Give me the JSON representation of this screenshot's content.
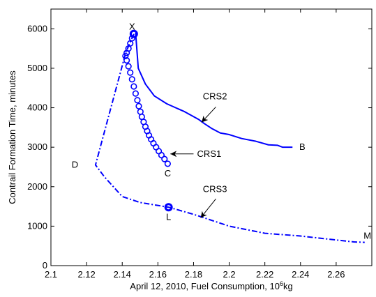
{
  "chart_data": {
    "type": "line",
    "xlabel": "April 12, 2010, Fuel Consumption, 10",
    "xlabel_sup": "6",
    "xlabel_unit": "kg",
    "ylabel": "Contrail Formation Time, minutes",
    "xlim": [
      2.1,
      2.28
    ],
    "ylim": [
      0,
      6500
    ],
    "xticks": [
      "2.1",
      "2.12",
      "2.14",
      "2.16",
      "2.18",
      "2.2",
      "2.22",
      "2.24",
      "2.26"
    ],
    "yticks": [
      "0",
      "1000",
      "2000",
      "3000",
      "4000",
      "5000",
      "6000"
    ],
    "grid": false,
    "line_color": "#0000ff",
    "series": [
      {
        "id": "crs1",
        "style": "circles",
        "x": [
          2.1465,
          2.1455,
          2.1445,
          2.1435,
          2.1425,
          2.1418,
          2.1425,
          2.1435,
          2.1445,
          2.1455,
          2.1465,
          2.1475,
          2.1485,
          2.1493,
          2.1502,
          2.151,
          2.152,
          2.153,
          2.154,
          2.155,
          2.1562,
          2.1575,
          2.159,
          2.1605,
          2.162,
          2.1637,
          2.1655
        ],
        "y": [
          5870,
          5760,
          5630,
          5500,
          5390,
          5310,
          5200,
          5050,
          4890,
          4720,
          4540,
          4360,
          4190,
          4040,
          3900,
          3770,
          3640,
          3520,
          3410,
          3300,
          3200,
          3100,
          3000,
          2900,
          2800,
          2700,
          2580
        ]
      },
      {
        "id": "crs2",
        "style": "solid",
        "x": [
          2.1475,
          2.149,
          2.153,
          2.158,
          2.165,
          2.175,
          2.183,
          2.186,
          2.19,
          2.195,
          2.2,
          2.207,
          2.215,
          2.222,
          2.227,
          2.23,
          2.2355
        ],
        "y": [
          5900,
          5000,
          4600,
          4300,
          4100,
          3900,
          3700,
          3600,
          3480,
          3360,
          3320,
          3220,
          3150,
          3060,
          3050,
          3000,
          3000
        ]
      },
      {
        "id": "crs3",
        "style": "dashdot",
        "x": [
          2.1465,
          2.142,
          2.125,
          2.13,
          2.14,
          2.15,
          2.166,
          2.18,
          2.2,
          2.22,
          2.24,
          2.26,
          2.27,
          2.276
        ],
        "y": [
          5870,
          5400,
          2550,
          2250,
          1750,
          1600,
          1480,
          1300,
          1000,
          820,
          750,
          650,
          600,
          590
        ]
      }
    ],
    "points": [
      {
        "id": "x-marker",
        "x": 2.1465,
        "y": 5870
      },
      {
        "id": "l-marker",
        "x": 2.166,
        "y": 1480
      }
    ],
    "point_labels": [
      {
        "id": "X",
        "text": "X",
        "x": 2.1455,
        "y": 6050
      },
      {
        "id": "D",
        "text": "D",
        "x": 2.1135,
        "y": 2550
      },
      {
        "id": "C",
        "text": "C",
        "x": 2.1655,
        "y": 2330
      },
      {
        "id": "B",
        "text": "B",
        "x": 2.241,
        "y": 3000
      },
      {
        "id": "L",
        "text": "L",
        "x": 2.166,
        "y": 1230
      },
      {
        "id": "M",
        "text": "M",
        "x": 2.2775,
        "y": 750
      }
    ],
    "annotations": [
      {
        "id": "crs2",
        "text": "CRS2",
        "label_x": 2.192,
        "label_y": 4280,
        "arrow_from": [
          2.1925,
          4020
        ],
        "arrow_to": [
          2.1845,
          3630
        ]
      },
      {
        "id": "crs1",
        "text": "CRS1",
        "label_x": 2.182,
        "label_y": 2830,
        "arrow_from": [
          2.18,
          2830
        ],
        "arrow_to": [
          2.167,
          2830
        ]
      },
      {
        "id": "crs3",
        "text": "CRS3",
        "label_x": 2.192,
        "label_y": 1930,
        "arrow_from": [
          2.1925,
          1690
        ],
        "arrow_to": [
          2.184,
          1210
        ]
      }
    ]
  }
}
